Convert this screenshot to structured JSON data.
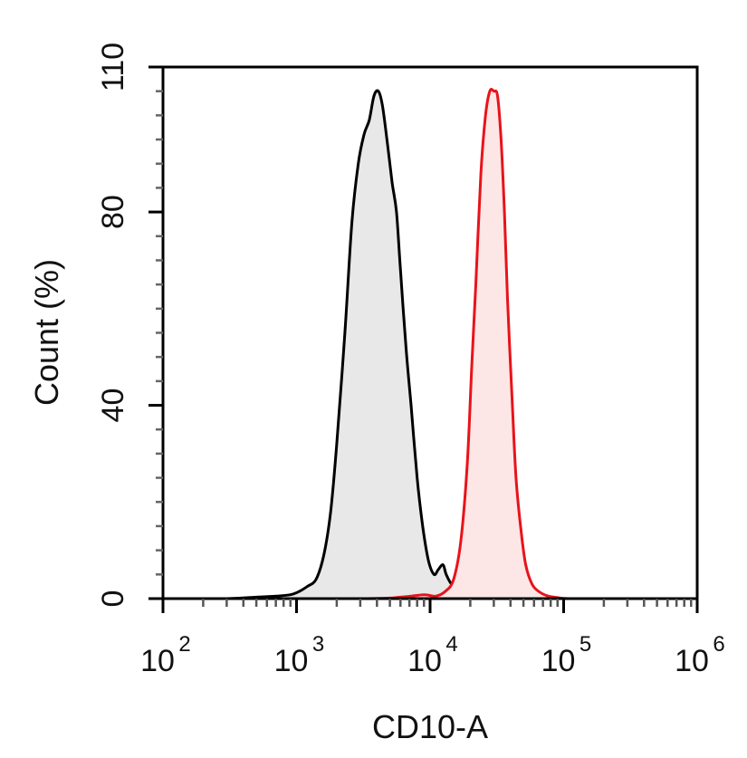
{
  "chart_data": {
    "type": "area",
    "xlabel": "CD10-A",
    "ylabel": "Count  (%)",
    "x_scale": "log",
    "xlim": [
      100,
      1000000
    ],
    "ylim": [
      0,
      110
    ],
    "x_ticks": [
      {
        "value": 100,
        "base": "10",
        "exp": "2"
      },
      {
        "value": 1000,
        "base": "10",
        "exp": "3"
      },
      {
        "value": 10000,
        "base": "10",
        "exp": "4"
      },
      {
        "value": 100000,
        "base": "10",
        "exp": "5"
      },
      {
        "value": 1000000,
        "base": "10",
        "exp": "6"
      }
    ],
    "y_ticks": [
      0,
      40,
      80,
      110
    ],
    "y_tick_labels": [
      "0",
      "40",
      "80",
      "110"
    ],
    "grid": false,
    "legend": "none",
    "series": [
      {
        "color": "#000000",
        "fill": "#e8e8e8",
        "x": [
          100,
          300,
          500,
          700,
          900,
          1050,
          1200,
          1400,
          1600,
          1800,
          2000,
          2300,
          2600,
          2900,
          3200,
          3500,
          3800,
          4100,
          4400,
          4800,
          5200,
          5600,
          6000,
          6600,
          7200,
          8000,
          8800,
          9700,
          10700,
          11500,
          12500,
          13200,
          14500,
          16000,
          18000,
          20000,
          25000,
          35000,
          60000,
          250000,
          1000000
        ],
        "y": [
          0,
          0,
          0.3,
          0.5,
          0.8,
          1.5,
          2.5,
          4,
          9,
          18,
          32,
          55,
          78,
          90,
          96,
          99,
          104,
          105,
          102,
          94,
          86,
          80,
          68,
          52,
          40,
          25,
          15,
          8,
          5,
          6,
          7,
          5,
          3,
          3,
          2,
          0.5,
          0.2,
          0.1,
          0,
          0,
          0
        ]
      },
      {
        "color": "#e8131a",
        "fill": "#fde6e6",
        "x": [
          100,
          3000,
          6000,
          9000,
          11000,
          13000,
          15000,
          17000,
          19000,
          20500,
          22000,
          24000,
          26000,
          28000,
          30000,
          32000,
          34000,
          36000,
          38000,
          41000,
          44000,
          48000,
          52000,
          58000,
          65000,
          75000,
          90000,
          110000,
          200000,
          1000000
        ],
        "y": [
          0,
          0,
          0.3,
          0.8,
          0.5,
          1.5,
          4,
          12,
          28,
          48,
          65,
          88,
          100,
          105,
          105,
          104,
          95,
          80,
          62,
          42,
          25,
          14,
          7,
          3,
          1.5,
          0.6,
          0.2,
          0,
          0,
          0
        ]
      }
    ]
  }
}
